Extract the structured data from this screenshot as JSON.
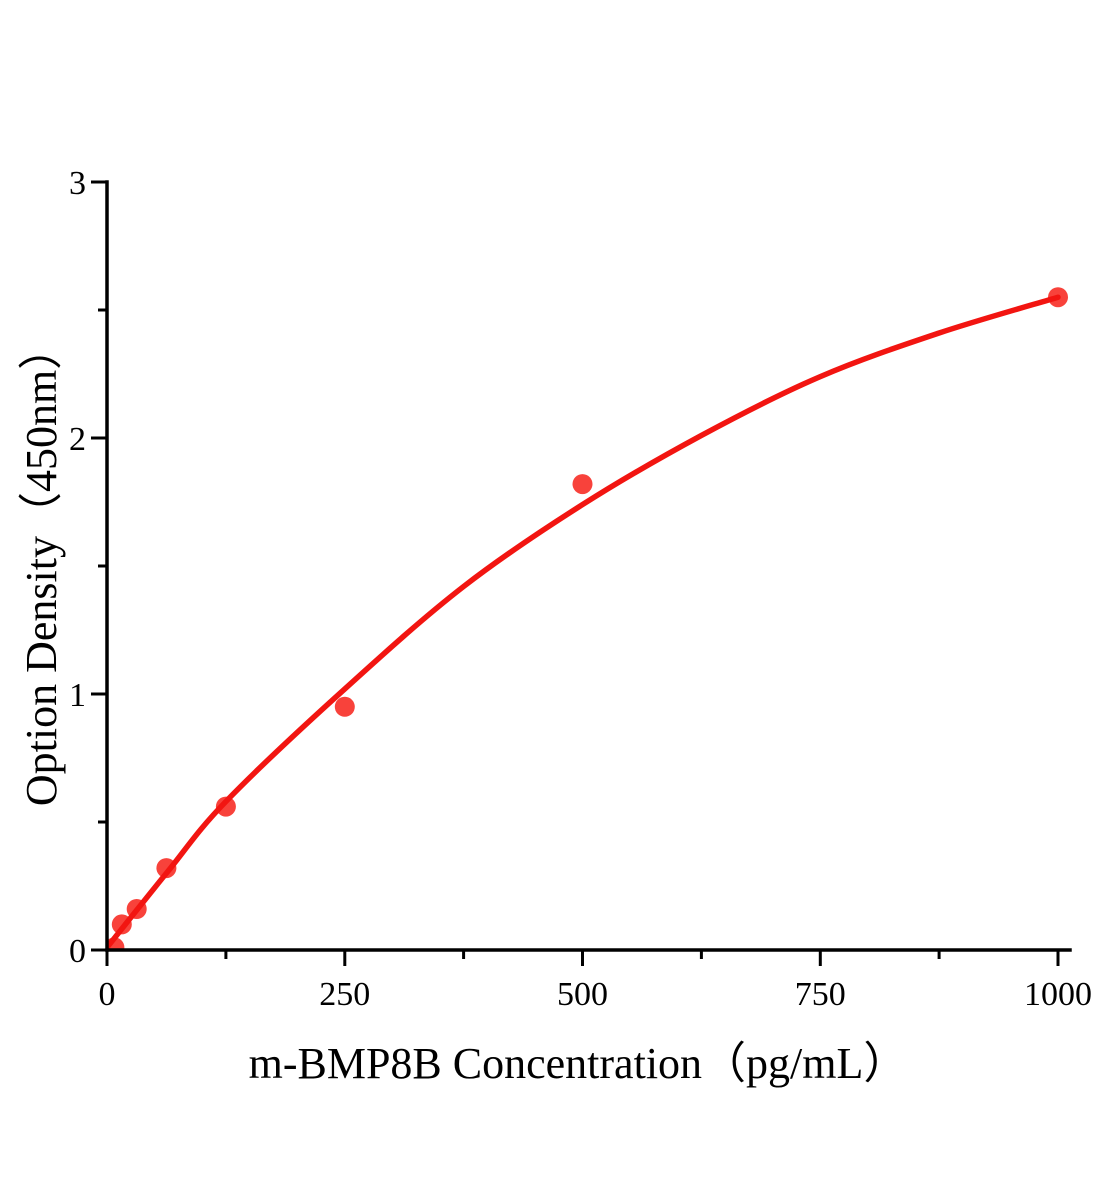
{
  "figure": {
    "kind": "elisa-standard-curve"
  },
  "chart_data": {
    "type": "scatter",
    "title": "",
    "xlabel": "m-BMP8B Concentration（pg/mL）",
    "ylabel": "Option Density（450nm）",
    "xlim": [
      0,
      1000
    ],
    "ylim": [
      0,
      3
    ],
    "x_major_ticks": [
      0,
      250,
      500,
      750,
      1000
    ],
    "x_minor_ticks": [
      125,
      375,
      625,
      875
    ],
    "y_major_ticks": [
      0,
      1,
      2,
      3
    ],
    "y_minor_ticks": [
      0.5,
      1.5,
      2.5
    ],
    "grid": false,
    "legend": false,
    "points_x": [
      7.8,
      15.6,
      31.2,
      62.5,
      125,
      250,
      500,
      1000
    ],
    "points_y": [
      0.01,
      0.1,
      0.16,
      0.32,
      0.56,
      0.95,
      1.82,
      2.55
    ],
    "fit_curve_x": [
      0,
      62.5,
      125,
      250,
      375,
      500,
      625,
      750,
      875,
      1000
    ],
    "fit_curve_y": [
      0.01,
      0.3,
      0.58,
      1.02,
      1.42,
      1.74,
      2.01,
      2.24,
      2.41,
      2.55
    ],
    "colors": {
      "curve": "#f21511",
      "marker": "#f8423b",
      "axis": "#000000",
      "text": "#000000",
      "background": "#ffffff"
    }
  }
}
